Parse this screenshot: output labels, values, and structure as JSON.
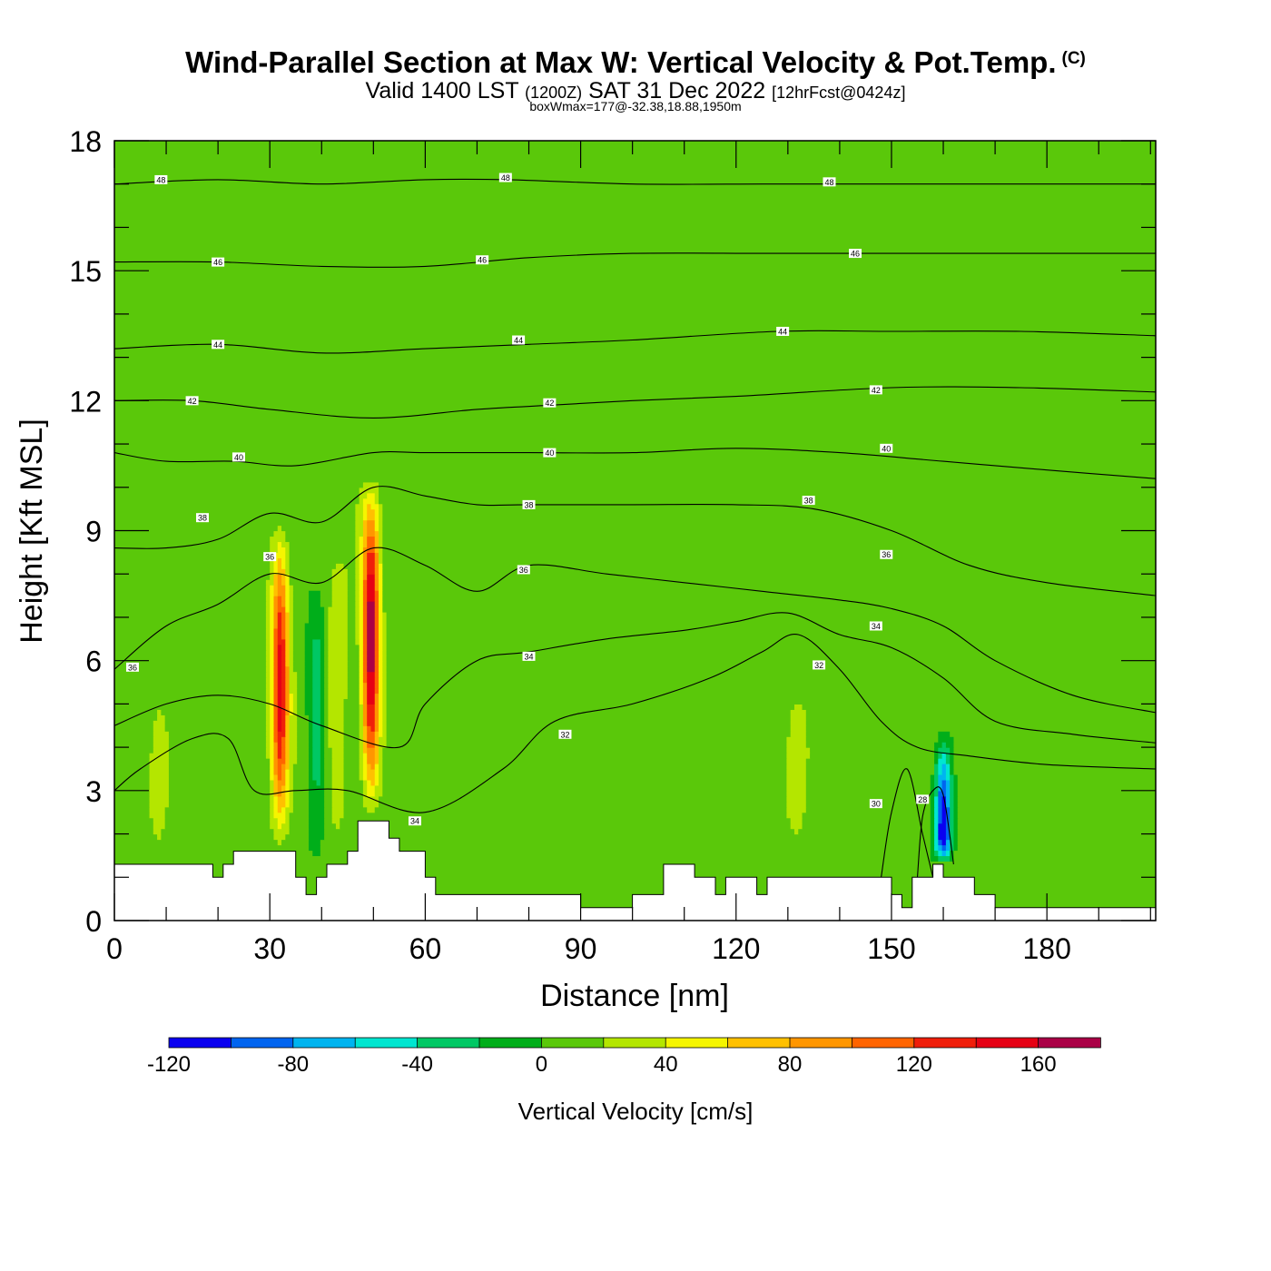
{
  "header": {
    "title": "Wind-Parallel Section at Max W: Vertical Velocity & Pot.Temp.",
    "copyright_mark": "(C)",
    "subtitle_main": "Valid 1400 LST",
    "subtitle_utc": "(1200Z)",
    "subtitle_date": "SAT 31 Dec 2022",
    "subtitle_fcst": "[12hrFcst@0424z]",
    "box_wmax": "boxWmax=177@-32.38,18.88,1950m"
  },
  "chart_data": {
    "type": "heatmap",
    "xlabel": "Distance [nm]",
    "ylabel": "Height [Kft MSL]",
    "xlim": [
      0,
      201
    ],
    "ylim": [
      0,
      18
    ],
    "x_ticks": [
      0,
      30,
      60,
      90,
      120,
      150,
      180
    ],
    "y_ticks": [
      0,
      3,
      6,
      9,
      12,
      15,
      18
    ],
    "colorbar": {
      "title": "Vertical Velocity [cm/s]",
      "levels": [
        -120,
        -100,
        -80,
        -60,
        -40,
        -20,
        0,
        20,
        40,
        60,
        80,
        100,
        120,
        140,
        160,
        180
      ],
      "colors": [
        "#0a00f0",
        "#0064f0",
        "#00b4f0",
        "#00e6d0",
        "#00c864",
        "#00ae1a",
        "#5ac80a",
        "#b4e600",
        "#f5f500",
        "#ffc000",
        "#ff9600",
        "#ff6400",
        "#f01e0a",
        "#e60014",
        "#aa0046"
      ],
      "tick_labels": [
        "-120",
        "-80",
        "-40",
        "0",
        "40",
        "80",
        "120",
        "160"
      ]
    },
    "background_velocity": 10,
    "updrafts": [
      {
        "x": 32,
        "bottom": 1.6,
        "top": 9.3,
        "peak_height": 5.5,
        "w_max": 150
      },
      {
        "x": 49.5,
        "bottom": 2.3,
        "top": 10.3,
        "peak_height": 6.5,
        "w_max": 177
      },
      {
        "x": 43,
        "bottom": 1.5,
        "top": 8.6,
        "peak_height": 5.0,
        "w_max": 45
      },
      {
        "x": 8.5,
        "bottom": 1.5,
        "top": 5.5,
        "peak_height": 3.5,
        "w_max": 38
      },
      {
        "x": 131.5,
        "bottom": 1.6,
        "top": 5.5,
        "peak_height": 3.5,
        "w_max": 38
      }
    ],
    "downdrafts": [
      {
        "x": 39,
        "bottom": 1.0,
        "top": 8.0,
        "peak_height": 5.0,
        "w_min": -35
      },
      {
        "x": 160,
        "bottom": 1.3,
        "top": 4.6,
        "peak_height": 2.0,
        "w_min": -120
      }
    ],
    "terrain": {
      "x": [
        0,
        19,
        19,
        21,
        21,
        23,
        23,
        27,
        27,
        35,
        35,
        37,
        37,
        39,
        39,
        41,
        41,
        45,
        45,
        47,
        47,
        53,
        53,
        55,
        55,
        60,
        60,
        62,
        62,
        64,
        64,
        66,
        66,
        90,
        90,
        100,
        100,
        106,
        106,
        112,
        112,
        116,
        116,
        118,
        118,
        124,
        124,
        126,
        126,
        132,
        132,
        150,
        150,
        152,
        152,
        154,
        154,
        158,
        158,
        160,
        160,
        166,
        166,
        170,
        170,
        201
      ],
      "height": [
        1.3,
        1.3,
        1.0,
        1.0,
        1.3,
        1.3,
        1.6,
        1.6,
        1.6,
        1.6,
        1.0,
        1.0,
        0.6,
        0.6,
        1.0,
        1.0,
        1.3,
        1.3,
        1.6,
        1.6,
        2.3,
        2.3,
        1.9,
        1.9,
        1.6,
        1.6,
        1.0,
        1.0,
        0.6,
        0.6,
        0.6,
        0.6,
        0.6,
        0.6,
        0.3,
        0.3,
        0.6,
        0.6,
        1.3,
        1.3,
        1.0,
        1.0,
        0.6,
        0.6,
        1.0,
        1.0,
        0.6,
        0.6,
        1.0,
        1.0,
        1.0,
        1.0,
        0.6,
        0.6,
        0.3,
        0.3,
        1.0,
        1.0,
        1.3,
        1.3,
        1.0,
        1.0,
        0.6,
        0.6,
        0.3,
        0.3
      ]
    },
    "isentropes": [
      {
        "label": "30",
        "points": [
          [
            148,
            1.0
          ],
          [
            150,
            2.5
          ],
          [
            153,
            3.5
          ],
          [
            156,
            2.0
          ],
          [
            158,
            1.0
          ]
        ],
        "label_at": [
          147,
          2.7
        ]
      },
      {
        "label": "28",
        "points": [
          [
            155,
            1.0
          ],
          [
            156,
            2.4
          ],
          [
            158,
            3.0
          ],
          [
            160,
            2.9
          ],
          [
            162,
            1.3
          ]
        ],
        "label_at": [
          156,
          2.8
        ]
      },
      {
        "label": "32",
        "points": [
          [
            0,
            3.0
          ],
          [
            5,
            3.5
          ],
          [
            15,
            4.2
          ],
          [
            22,
            4.2
          ],
          [
            27,
            3.0
          ],
          [
            35,
            3.0
          ],
          [
            45,
            3.0
          ],
          [
            60,
            2.5
          ],
          [
            75,
            3.5
          ],
          [
            85,
            4.6
          ],
          [
            100,
            5.0
          ],
          [
            115,
            5.6
          ],
          [
            125,
            6.2
          ],
          [
            132,
            6.6
          ],
          [
            140,
            5.8
          ],
          [
            148,
            4.6
          ],
          [
            155,
            4.0
          ],
          [
            165,
            3.8
          ],
          [
            180,
            3.6
          ],
          [
            201,
            3.5
          ]
        ],
        "label_at": [
          87,
          4.3
        ]
      },
      {
        "label": "34",
        "points": [
          [
            0,
            4.5
          ],
          [
            10,
            5.0
          ],
          [
            20,
            5.2
          ],
          [
            30,
            5.0
          ],
          [
            40,
            4.5
          ],
          [
            55,
            4.0
          ],
          [
            60,
            5.0
          ],
          [
            70,
            6.0
          ],
          [
            80,
            6.2
          ],
          [
            95,
            6.5
          ],
          [
            110,
            6.7
          ],
          [
            120,
            6.9
          ],
          [
            130,
            7.1
          ],
          [
            140,
            6.6
          ],
          [
            150,
            6.3
          ],
          [
            160,
            5.6
          ],
          [
            170,
            4.6
          ],
          [
            185,
            4.3
          ],
          [
            201,
            4.1
          ]
        ],
        "label_at": [
          80,
          6.1
        ]
      },
      {
        "label": "36",
        "points": [
          [
            0,
            5.8
          ],
          [
            10,
            6.8
          ],
          [
            20,
            7.3
          ],
          [
            30,
            8.0
          ],
          [
            40,
            7.8
          ],
          [
            50,
            8.6
          ],
          [
            60,
            8.2
          ],
          [
            70,
            7.6
          ],
          [
            80,
            8.2
          ],
          [
            95,
            8.0
          ],
          [
            110,
            7.8
          ],
          [
            125,
            7.6
          ],
          [
            140,
            7.4
          ],
          [
            150,
            7.2
          ],
          [
            160,
            6.8
          ],
          [
            170,
            6.0
          ],
          [
            185,
            5.2
          ],
          [
            201,
            4.8
          ]
        ],
        "label_at": [
          79,
          8.1
        ]
      },
      {
        "label": "38",
        "points": [
          [
            0,
            8.6
          ],
          [
            10,
            8.6
          ],
          [
            20,
            8.8
          ],
          [
            30,
            9.4
          ],
          [
            40,
            9.2
          ],
          [
            50,
            10.0
          ],
          [
            60,
            9.8
          ],
          [
            70,
            9.6
          ],
          [
            80,
            9.6
          ],
          [
            100,
            9.6
          ],
          [
            120,
            9.6
          ],
          [
            135,
            9.5
          ],
          [
            150,
            9.0
          ],
          [
            165,
            8.2
          ],
          [
            180,
            7.8
          ],
          [
            201,
            7.5
          ]
        ],
        "label_at": [
          17,
          9.3
        ]
      },
      {
        "label": "40",
        "points": [
          [
            0,
            10.8
          ],
          [
            10,
            10.6
          ],
          [
            23,
            10.6
          ],
          [
            35,
            10.5
          ],
          [
            50,
            10.8
          ],
          [
            60,
            10.8
          ],
          [
            80,
            10.8
          ],
          [
            100,
            10.8
          ],
          [
            120,
            10.9
          ],
          [
            140,
            10.8
          ],
          [
            160,
            10.6
          ],
          [
            180,
            10.4
          ],
          [
            201,
            10.2
          ]
        ],
        "label_at": [
          24,
          10.7
        ]
      },
      {
        "label": "42",
        "points": [
          [
            0,
            12.0
          ],
          [
            15,
            12.0
          ],
          [
            30,
            11.8
          ],
          [
            50,
            11.6
          ],
          [
            70,
            11.8
          ],
          [
            85,
            11.9
          ],
          [
            100,
            12.0
          ],
          [
            120,
            12.1
          ],
          [
            150,
            12.3
          ],
          [
            175,
            12.3
          ],
          [
            201,
            12.2
          ]
        ],
        "label_at": [
          15,
          12.0
        ]
      },
      {
        "label": "44",
        "points": [
          [
            0,
            13.2
          ],
          [
            20,
            13.3
          ],
          [
            40,
            13.1
          ],
          [
            60,
            13.2
          ],
          [
            80,
            13.3
          ],
          [
            100,
            13.4
          ],
          [
            128,
            13.6
          ],
          [
            150,
            13.6
          ],
          [
            175,
            13.6
          ],
          [
            201,
            13.5
          ]
        ],
        "label_at": [
          20,
          13.3
        ]
      },
      {
        "label": "46",
        "points": [
          [
            0,
            15.2
          ],
          [
            20,
            15.2
          ],
          [
            40,
            15.1
          ],
          [
            60,
            15.1
          ],
          [
            80,
            15.3
          ],
          [
            100,
            15.4
          ],
          [
            125,
            15.4
          ],
          [
            143,
            15.4
          ],
          [
            170,
            15.4
          ],
          [
            201,
            15.4
          ]
        ],
        "label_at": [
          20,
          15.2
        ]
      },
      {
        "label": "48",
        "points": [
          [
            0,
            17.0
          ],
          [
            20,
            17.1
          ],
          [
            40,
            17.0
          ],
          [
            60,
            17.1
          ],
          [
            76,
            17.1
          ],
          [
            100,
            17.0
          ],
          [
            125,
            17.0
          ],
          [
            138,
            17.0
          ],
          [
            170,
            17.0
          ],
          [
            201,
            17.0
          ]
        ],
        "label_at": [
          9,
          17.1
        ]
      }
    ],
    "extra_labels": [
      {
        "label": "48",
        "at": [
          75.5,
          17.15
        ]
      },
      {
        "label": "48",
        "at": [
          138,
          17.05
        ]
      },
      {
        "label": "46",
        "at": [
          71,
          15.25
        ]
      },
      {
        "label": "46",
        "at": [
          143,
          15.4
        ]
      },
      {
        "label": "44",
        "at": [
          78,
          13.4
        ]
      },
      {
        "label": "44",
        "at": [
          129,
          13.6
        ]
      },
      {
        "label": "42",
        "at": [
          84,
          11.95
        ]
      },
      {
        "label": "42",
        "at": [
          147,
          12.25
        ]
      },
      {
        "label": "40",
        "at": [
          84,
          10.8
        ]
      },
      {
        "label": "40",
        "at": [
          149,
          10.9
        ]
      },
      {
        "label": "38",
        "at": [
          80,
          9.6
        ]
      },
      {
        "label": "38",
        "at": [
          134,
          9.7
        ]
      },
      {
        "label": "36",
        "at": [
          30,
          8.4
        ]
      },
      {
        "label": "36",
        "at": [
          149,
          8.45
        ]
      },
      {
        "label": "36",
        "at": [
          3.5,
          5.85
        ]
      },
      {
        "label": "34",
        "at": [
          147,
          6.8
        ]
      },
      {
        "label": "34",
        "at": [
          58,
          2.3
        ]
      },
      {
        "label": "32",
        "at": [
          136,
          5.9
        ]
      }
    ]
  }
}
